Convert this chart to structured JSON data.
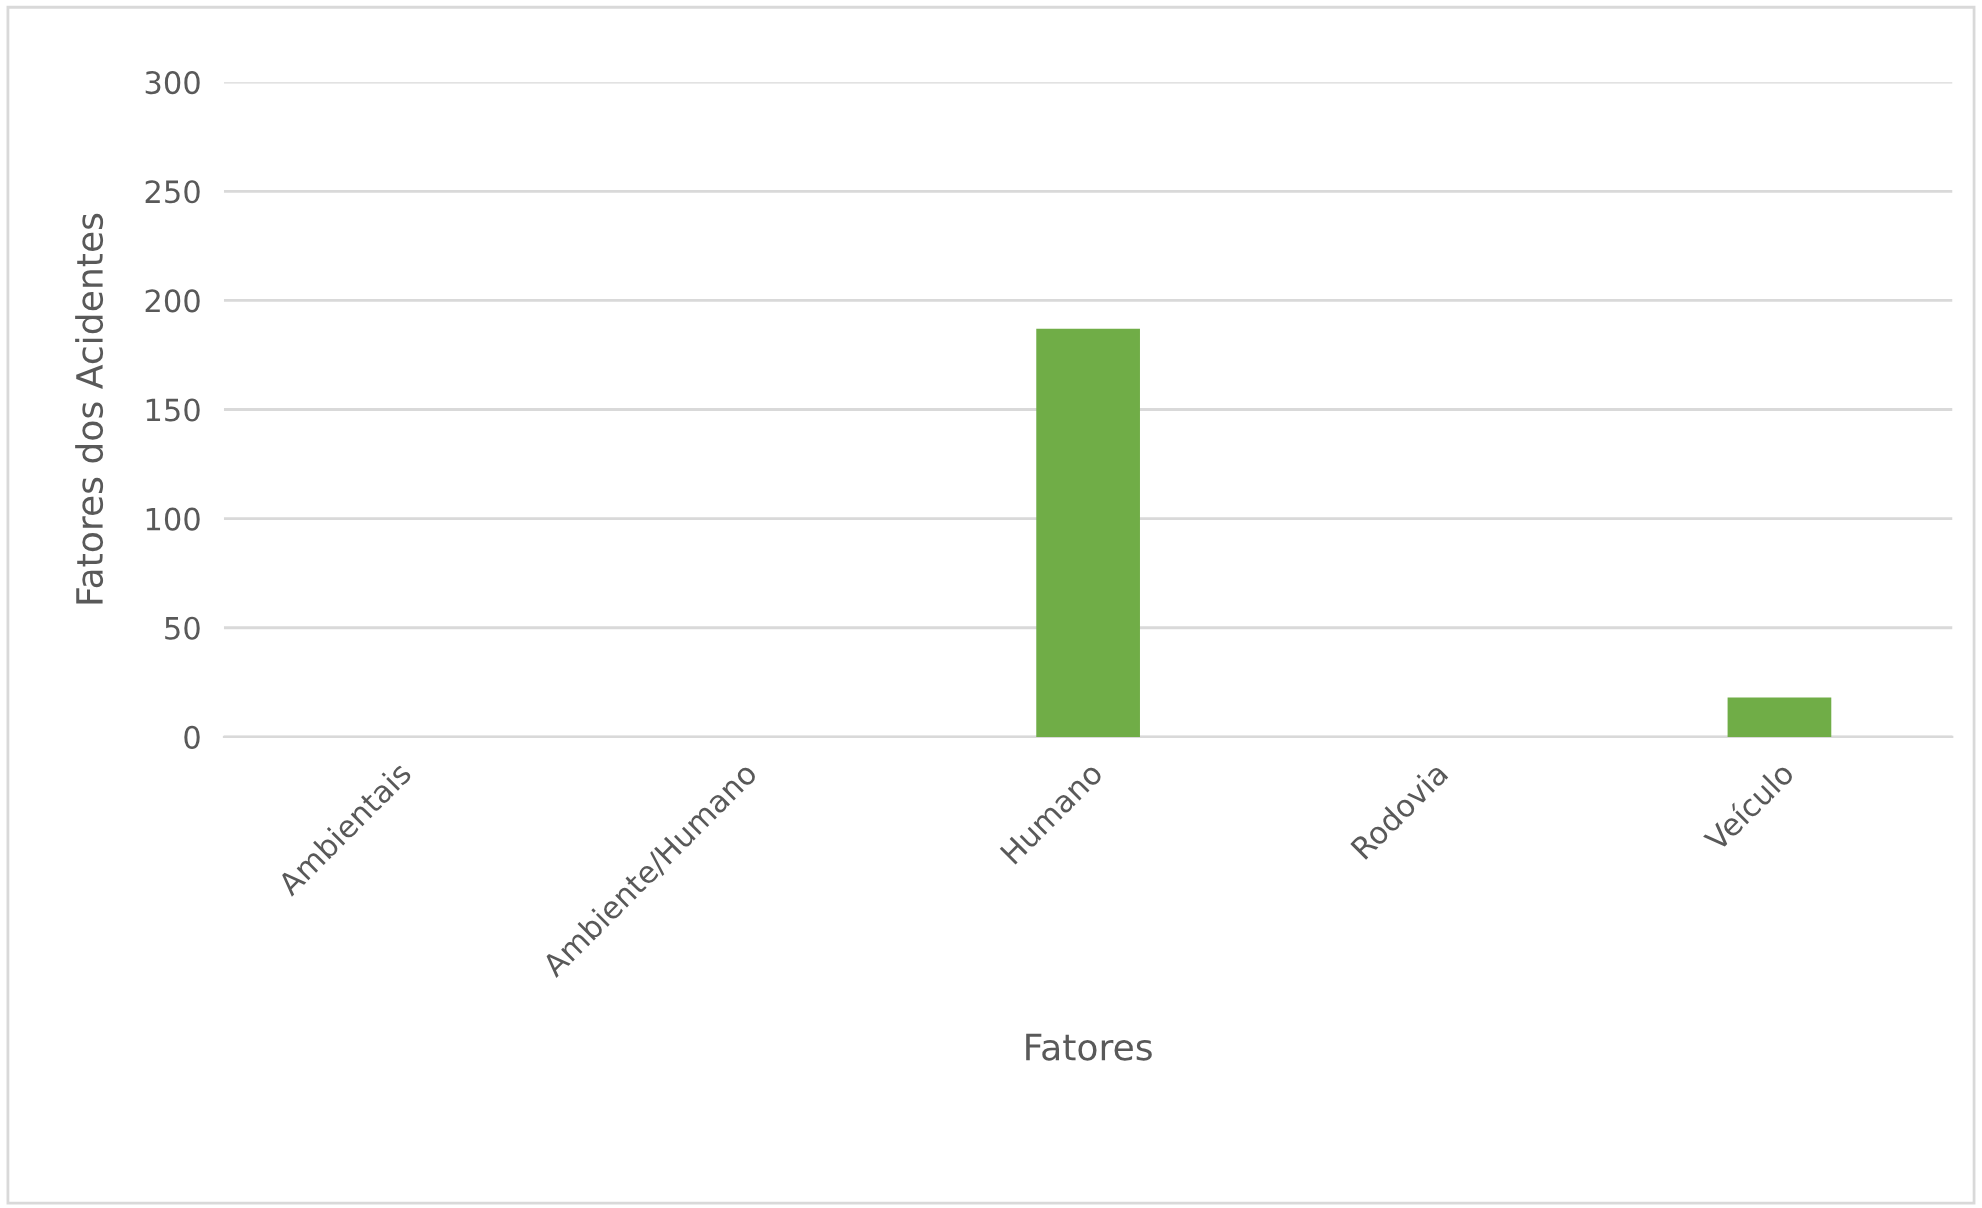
{
  "chart_data": {
    "type": "bar",
    "xlabel": "Fatores",
    "ylabel": "Fatores dos Acidentes",
    "categories": [
      "Ambientais",
      "Ambiente/Humano",
      "Humano",
      "Rodovia",
      "Veículo"
    ],
    "values": [
      0,
      0,
      187,
      0,
      18
    ],
    "color": "#70ad47",
    "ylim": [
      0,
      300
    ],
    "yticks": [
      0,
      50,
      100,
      150,
      200,
      250,
      300
    ],
    "grid": "y",
    "legend": false
  }
}
